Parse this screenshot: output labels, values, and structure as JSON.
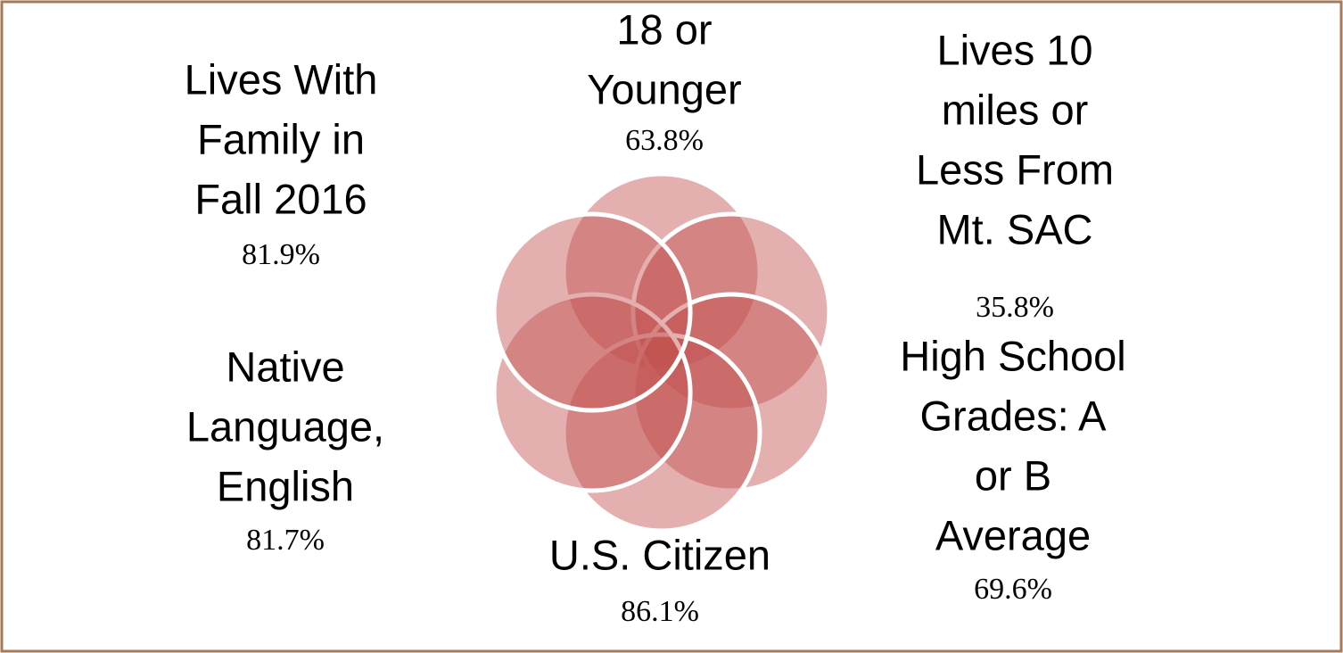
{
  "items": [
    {
      "label_lines": [
        "18 or",
        "Younger"
      ],
      "value": "63.8%"
    },
    {
      "label_lines": [
        "Lives 10",
        "miles or",
        "Less From",
        "Mt. SAC"
      ],
      "value": "35.8%"
    },
    {
      "label_lines": [
        "High School",
        "Grades: A",
        "or B",
        "Average"
      ],
      "value": "69.6%"
    },
    {
      "label_lines": [
        "U.S. Citizen"
      ],
      "value": "86.1%"
    },
    {
      "label_lines": [
        "Native",
        "Language,",
        "English"
      ],
      "value": "81.7%"
    },
    {
      "label_lines": [
        "Lives With",
        "Family in",
        "Fall 2016"
      ],
      "value": "81.9%"
    }
  ]
}
